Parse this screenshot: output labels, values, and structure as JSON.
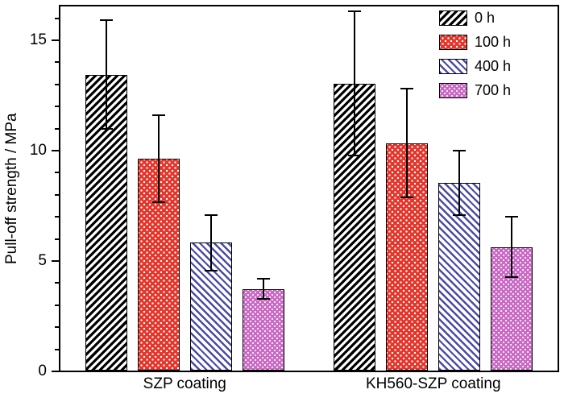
{
  "figure": {
    "background": "#ffffff"
  },
  "chart_data": {
    "type": "bar",
    "title": "",
    "xlabel": "",
    "ylabel": "Pull-off strength / MPa",
    "ylim": [
      0,
      16.5
    ],
    "yticks": [
      0,
      5,
      10,
      15
    ],
    "minor_tick_interval": 1,
    "grid": false,
    "legend_position": "top-right-inside",
    "error_bars": true,
    "categories": [
      "SZP coating",
      "KH560-SZP coating"
    ],
    "series": [
      {
        "name": "0 h",
        "values": [
          13.4,
          13.0
        ],
        "errors": [
          2.5,
          3.3
        ],
        "pattern": "black-diagonal-hatch",
        "color": "#000000"
      },
      {
        "name": "100 h",
        "values": [
          9.6,
          10.3
        ],
        "errors": [
          2.0,
          2.5
        ],
        "pattern": "white-dots-on-red",
        "color": "#e5352b"
      },
      {
        "name": "400 h",
        "values": [
          5.8,
          8.5
        ],
        "errors": [
          1.3,
          1.5
        ],
        "pattern": "blue-diagonal-lines",
        "color": "#4a4aa8"
      },
      {
        "name": "700 h",
        "values": [
          3.7,
          5.6
        ],
        "errors": [
          0.5,
          1.4
        ],
        "pattern": "white-dots-on-magenta",
        "color": "#ca6ac5"
      }
    ]
  }
}
